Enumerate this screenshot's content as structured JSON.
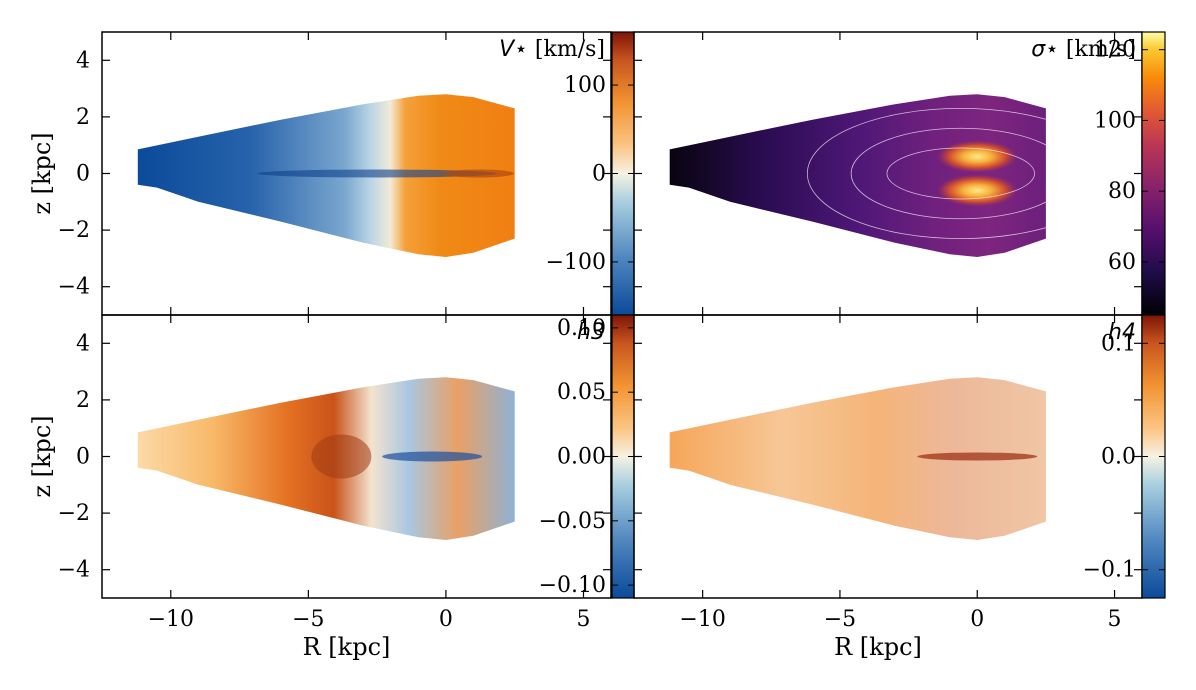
{
  "chart_data": [
    {
      "type": "heatmap",
      "panel": "top-left",
      "quantity": "V⋆",
      "title_symbol": "V⋆",
      "title_unit": "[km/s]",
      "xlabel": "",
      "ylabel": "z [kpc]",
      "xlim": [
        -12.5,
        6.0
      ],
      "ylim": [
        -5,
        5
      ],
      "xticks": [
        -10,
        -5,
        0,
        5
      ],
      "yticks": [
        4,
        2,
        0,
        -2,
        -4
      ],
      "ytick_labels": [
        "4",
        "2",
        "0",
        "−2",
        "−4"
      ],
      "colormap": "RdYlBu_r",
      "colorbar_range": [
        -160,
        160
      ],
      "colorbar_ticks": [
        100,
        0,
        -100
      ],
      "colorbar_tick_labels": [
        "100",
        "0",
        "−100"
      ],
      "pattern": "rotation: negative (approaching) at R<0, positive (receding) at R>0"
    },
    {
      "type": "heatmap",
      "panel": "top-right",
      "quantity": "σ⋆",
      "title_symbol": "σ⋆",
      "title_unit": "[km/s]",
      "xlabel": "",
      "ylabel": "",
      "xlim": [
        -12.5,
        6.0
      ],
      "ylim": [
        -5,
        5
      ],
      "xticks": [
        -10,
        -5,
        0,
        5
      ],
      "colormap": "inferno",
      "colorbar_range": [
        45,
        125
      ],
      "colorbar_ticks": [
        120,
        100,
        80,
        60
      ],
      "colorbar_tick_labels": [
        "120",
        "100",
        "80",
        "60"
      ],
      "contours": "white isocontours of dispersion",
      "pattern": "dispersion peaks near center (R≈0, z≈±0.6)"
    },
    {
      "type": "heatmap",
      "panel": "bottom-left",
      "quantity": "h3",
      "title_symbol": "h3",
      "xlabel": "R [kpc]",
      "ylabel": "z [kpc]",
      "xlim": [
        -12.5,
        6.0
      ],
      "ylim": [
        -5,
        5
      ],
      "xticks": [
        -10,
        -5,
        0,
        5
      ],
      "xtick_labels": [
        "−10",
        "−5",
        "0",
        "5"
      ],
      "yticks": [
        4,
        2,
        0,
        -2,
        -4
      ],
      "ytick_labels": [
        "4",
        "2",
        "0",
        "−2",
        "−4"
      ],
      "colormap": "RdYlBu_r",
      "colorbar_range": [
        -0.11,
        0.11
      ],
      "colorbar_ticks": [
        0.1,
        0.05,
        0.0,
        -0.05,
        -0.1
      ],
      "colorbar_tick_labels": [
        "0.10",
        "0.05",
        "0.00",
        "−0.05",
        "−0.10"
      ],
      "pattern": "positive at R<0, negative near R≈0 midplane"
    },
    {
      "type": "heatmap",
      "panel": "bottom-right",
      "quantity": "h4",
      "title_symbol": "h4",
      "xlabel": "R [kpc]",
      "ylabel": "",
      "xlim": [
        -12.5,
        6.0
      ],
      "ylim": [
        -5,
        5
      ],
      "xticks": [
        -10,
        -5,
        0,
        5
      ],
      "xtick_labels": [
        "−10",
        "−5",
        "0",
        "5"
      ],
      "colormap": "RdYlBu_r",
      "colorbar_range": [
        -0.125,
        0.125
      ],
      "colorbar_ticks": [
        0.1,
        0.0,
        -0.1
      ],
      "colorbar_tick_labels": [
        "0.1",
        "0.0",
        "−0.1"
      ],
      "pattern": "mostly slightly positive, strongest along midplane near R≈0"
    }
  ]
}
